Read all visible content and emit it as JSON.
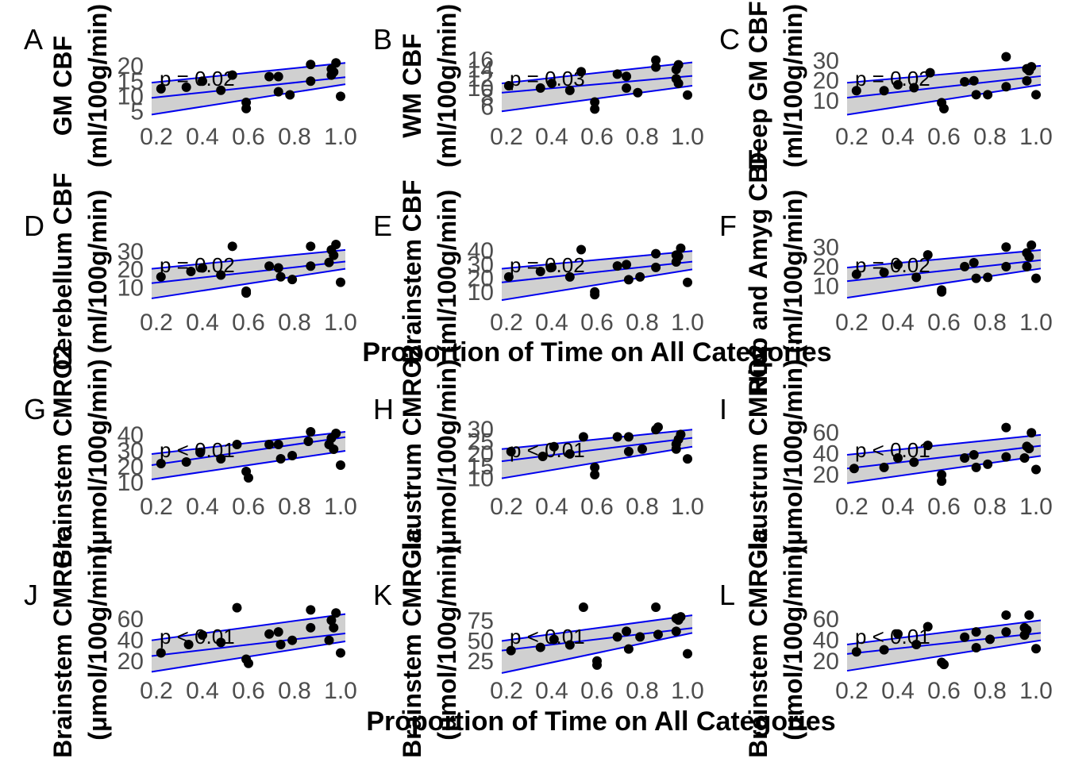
{
  "xaxis_title_top": "Proportion of Time on All Categories",
  "xaxis_title_bottom": "Proportion of Time on All Categories",
  "colors": {
    "line": "#0000ee",
    "band": "#c8c8c8",
    "point": "#000000",
    "tick": "#4d4d4d"
  },
  "chart_data": [
    {
      "letter": "A",
      "type": "scatter",
      "ylabel": "GM CBF",
      "yunit": "(ml/100g/min)",
      "pvalue": "p = 0.02",
      "xticks": [
        "0.2",
        "0.4",
        "0.6",
        "0.8",
        "1.0"
      ],
      "yticks": [
        "5",
        "10",
        "15",
        "20"
      ],
      "xlim": [
        0.2,
        1.0
      ],
      "ylim": [
        2,
        25
      ],
      "fit": {
        "intercept": 9.5,
        "slope": 8.5,
        "lower_start": 4,
        "lower_end": 14,
        "upper_start": 14.5,
        "upper_end": 21
      },
      "x": [
        0.22,
        0.33,
        0.4,
        0.48,
        0.53,
        0.59,
        0.59,
        0.69,
        0.73,
        0.73,
        0.78,
        0.87,
        0.87,
        0.96,
        0.96,
        0.97,
        0.98,
        1.0
      ],
      "y": [
        12.5,
        13,
        15,
        12,
        17,
        8,
        6,
        16.5,
        16.5,
        11.5,
        10.5,
        20.5,
        15,
        17,
        19,
        18,
        21,
        10
      ]
    },
    {
      "letter": "B",
      "type": "scatter",
      "ylabel": "WM CBF",
      "yunit": "(ml/100g/min)",
      "pvalue": "p = 0.03",
      "xticks": [
        "0.2",
        "0.4",
        "0.6",
        "0.8",
        "1.0"
      ],
      "yticks": [
        "6",
        "8",
        "10",
        "12",
        "14",
        "16"
      ],
      "xlim": [
        0.2,
        1.0
      ],
      "ylim": [
        3,
        18
      ],
      "fit": {
        "intercept": 9.0,
        "slope": 4.5,
        "lower_start": 5,
        "lower_end": 10.5,
        "upper_start": 11,
        "upper_end": 15.5
      },
      "x": [
        0.21,
        0.35,
        0.4,
        0.48,
        0.53,
        0.59,
        0.59,
        0.69,
        0.73,
        0.73,
        0.78,
        0.86,
        0.86,
        0.95,
        0.95,
        0.96,
        0.96,
        1.0
      ],
      "y": [
        10.5,
        10,
        11,
        9.5,
        13.5,
        7,
        5.5,
        13,
        12.5,
        10,
        9,
        14.5,
        16,
        12,
        14,
        11,
        15,
        8.5
      ]
    },
    {
      "letter": "C",
      "type": "scatter",
      "ylabel": "Deep GM CBF",
      "yunit": "(ml/100g/min)",
      "pvalue": "p = 0.02",
      "xticks": [
        "0.2",
        "0.4",
        "0.6",
        "0.8",
        "1.0"
      ],
      "yticks": [
        "10",
        "20",
        "30"
      ],
      "xlim": [
        0.2,
        1.0
      ],
      "ylim": [
        0,
        35
      ],
      "fit": {
        "intercept": 11.5,
        "slope": 13.5,
        "lower_start": 3,
        "lower_end": 18,
        "upper_start": 19,
        "upper_end": 27.5
      },
      "x": [
        0.22,
        0.34,
        0.4,
        0.47,
        0.54,
        0.59,
        0.6,
        0.69,
        0.73,
        0.74,
        0.79,
        0.87,
        0.87,
        0.96,
        0.96,
        0.97,
        0.98,
        1.0
      ],
      "y": [
        15,
        15,
        18,
        16.5,
        24,
        9,
        6,
        19.5,
        20,
        13,
        13,
        32,
        17,
        20,
        26,
        25,
        27,
        13
      ]
    },
    {
      "letter": "D",
      "type": "scatter",
      "ylabel": "Cerebellum CBF",
      "yunit": "(ml/100g/min)",
      "pvalue": "p = 0.02",
      "xticks": [
        "0.2",
        "0.4",
        "0.6",
        "0.8",
        "1.0"
      ],
      "yticks": [
        "10",
        "20",
        "30"
      ],
      "xlim": [
        0.2,
        1.0
      ],
      "ylim": [
        0,
        38
      ],
      "fit": {
        "intercept": 12.5,
        "slope": 15,
        "lower_start": 4,
        "lower_end": 20.5,
        "upper_start": 20.5,
        "upper_end": 31
      },
      "x": [
        0.22,
        0.35,
        0.4,
        0.48,
        0.53,
        0.59,
        0.59,
        0.69,
        0.73,
        0.74,
        0.79,
        0.87,
        0.87,
        0.95,
        0.96,
        0.97,
        0.98,
        1.0
      ],
      "y": [
        16,
        19,
        21,
        17,
        33,
        8,
        7,
        22,
        21,
        16,
        14.5,
        33,
        22,
        24,
        31,
        28,
        34,
        13
      ]
    },
    {
      "letter": "E",
      "type": "scatter",
      "ylabel": "Brainstem CBF",
      "yunit": "(ml/100g/min)",
      "pvalue": "p = 0.02",
      "xticks": [
        "0.2",
        "0.4",
        "0.6",
        "0.8",
        "1.0"
      ],
      "yticks": [
        "10",
        "20",
        "30",
        "40"
      ],
      "xlim": [
        0.2,
        1.0
      ],
      "ylim": [
        0,
        50
      ],
      "fit": {
        "intercept": 17,
        "slope": 19,
        "lower_start": 4,
        "lower_end": 26.5,
        "upper_start": 27,
        "upper_end": 40
      },
      "x": [
        0.21,
        0.35,
        0.4,
        0.48,
        0.53,
        0.59,
        0.59,
        0.69,
        0.73,
        0.74,
        0.79,
        0.86,
        0.86,
        0.95,
        0.95,
        0.96,
        0.97,
        1.0
      ],
      "y": [
        21,
        25,
        28,
        21,
        41,
        10,
        8,
        29,
        30,
        19,
        21,
        38,
        28,
        32,
        37,
        36,
        42,
        17
      ]
    },
    {
      "letter": "F",
      "type": "scatter",
      "ylabel": "Hipp and Amyg CBF",
      "yunit": "(ml/100g/min)",
      "pvalue": "p = 0.02",
      "xticks": [
        "0.2",
        "0.4",
        "0.6",
        "0.8",
        "1.0"
      ],
      "yticks": [
        "10",
        "20",
        "30"
      ],
      "xlim": [
        0.2,
        1.0
      ],
      "ylim": [
        0,
        35
      ],
      "fit": {
        "intercept": 12.5,
        "slope": 13.5,
        "lower_start": 4,
        "lower_end": 19,
        "upper_start": 19.5,
        "upper_end": 28.5
      },
      "x": [
        0.22,
        0.34,
        0.4,
        0.48,
        0.53,
        0.59,
        0.59,
        0.69,
        0.73,
        0.74,
        0.79,
        0.87,
        0.87,
        0.96,
        0.96,
        0.97,
        0.98,
        1.0
      ],
      "y": [
        16,
        17,
        21,
        14.5,
        26,
        8,
        7,
        20,
        22,
        14,
        14.5,
        30,
        20,
        20,
        27,
        25,
        31,
        14
      ]
    },
    {
      "letter": "G",
      "type": "scatter",
      "ylabel": "Brainstem CMRO2",
      "yunit": "(μmol/100g/min)",
      "pvalue": "p < 0.01",
      "xticks": [
        "0.2",
        "0.4",
        "0.6",
        "0.8",
        "1.0"
      ],
      "yticks": [
        "10",
        "20",
        "30",
        "40"
      ],
      "xlim": [
        0.2,
        1.0
      ],
      "ylim": [
        5,
        48
      ],
      "fit": {
        "intercept": 21,
        "slope": 22,
        "lower_start": 12,
        "lower_end": 30,
        "upper_start": 28,
        "upper_end": 42
      },
      "x": [
        0.22,
        0.33,
        0.39,
        0.48,
        0.55,
        0.59,
        0.6,
        0.69,
        0.73,
        0.74,
        0.79,
        0.86,
        0.87,
        0.95,
        0.96,
        0.97,
        0.98,
        1.0
      ],
      "y": [
        22,
        23,
        29,
        25,
        34,
        17,
        13,
        34,
        34,
        25,
        27,
        36,
        42,
        34,
        38,
        31,
        41,
        21
      ]
    },
    {
      "letter": "H",
      "type": "scatter",
      "ylabel": "Claustrum CMRO2",
      "yunit": "(μmol/100g/min)",
      "pvalue": "p < 0.01",
      "xticks": [
        "0.2",
        "0.4",
        "0.6",
        "0.8",
        "1.0"
      ],
      "yticks": [
        "10",
        "15",
        "20",
        "25",
        "30"
      ],
      "xlim": [
        0.2,
        1.0
      ],
      "ylim": [
        5,
        33
      ],
      "fit": {
        "intercept": 17,
        "slope": 12,
        "lower_start": 10,
        "lower_end": 23,
        "upper_start": 22,
        "upper_end": 30
      },
      "x": [
        0.22,
        0.36,
        0.41,
        0.48,
        0.54,
        0.59,
        0.59,
        0.69,
        0.74,
        0.74,
        0.8,
        0.86,
        0.87,
        0.95,
        0.95,
        0.96,
        0.97,
        1.0
      ],
      "y": [
        21,
        19,
        23,
        20,
        27,
        14.5,
        11.5,
        27,
        27,
        21,
        22,
        30,
        31,
        22,
        24,
        26,
        28,
        18
      ]
    },
    {
      "letter": "I",
      "type": "scatter",
      "ylabel": "Claustrum CMRO2",
      "yunit": "(μmol/100g/min)",
      "pvalue": "p < 0.01",
      "xticks": [
        "0.2",
        "0.4",
        "0.6",
        "0.8",
        "1.0"
      ],
      "yticks": [
        "20",
        "40",
        "60"
      ],
      "xlim": [
        0.2,
        1.0
      ],
      "ylim": [
        5,
        70
      ],
      "fit": {
        "intercept": 26,
        "slope": 27,
        "lower_start": 12,
        "lower_end": 38,
        "upper_start": 39,
        "upper_end": 58
      },
      "x": [
        0.21,
        0.34,
        0.4,
        0.47,
        0.53,
        0.59,
        0.59,
        0.69,
        0.73,
        0.74,
        0.79,
        0.87,
        0.87,
        0.95,
        0.96,
        0.97,
        0.98,
        1.0
      ],
      "y": [
        26,
        27,
        36,
        32,
        48,
        20,
        14,
        36,
        39,
        27,
        30,
        65,
        37,
        36,
        47,
        45,
        60,
        25
      ]
    },
    {
      "letter": "J",
      "type": "scatter",
      "ylabel": "Brainstem CMRGlc",
      "yunit": "(μmol/100g/min)",
      "pvalue": "p < 0.01",
      "xticks": [
        "0.2",
        "0.4",
        "0.6",
        "0.8",
        "1.0"
      ],
      "yticks": [
        "20",
        "40",
        "60"
      ],
      "xlim": [
        0.2,
        1.0
      ],
      "ylim": [
        5,
        70
      ],
      "fit": {
        "intercept": 25,
        "slope": 27,
        "lower_start": 10,
        "lower_end": 39,
        "upper_start": 40,
        "upper_end": 65
      },
      "x": [
        0.22,
        0.34,
        0.4,
        0.48,
        0.55,
        0.59,
        0.6,
        0.69,
        0.73,
        0.74,
        0.79,
        0.87,
        0.87,
        0.95,
        0.96,
        0.97,
        0.98,
        1.0
      ],
      "y": [
        28,
        36,
        45,
        38,
        71,
        22,
        18,
        46,
        48,
        36,
        40,
        69,
        52,
        40,
        59,
        52,
        66,
        28
      ]
    },
    {
      "letter": "K",
      "type": "scatter",
      "ylabel": "Brainstem CMRGlc",
      "yunit": "(μmol/100g/min)",
      "pvalue": "p < 0.01",
      "xticks": [
        "0.2",
        "0.4",
        "0.6",
        "0.8",
        "1.0"
      ],
      "yticks": [
        "25",
        "50",
        "75"
      ],
      "xlim": [
        0.2,
        1.0
      ],
      "ylim": [
        5,
        90
      ],
      "fit": {
        "intercept": 38,
        "slope": 35,
        "lower_start": 10,
        "lower_end": 60,
        "upper_start": 50,
        "upper_end": 82
      },
      "x": [
        0.22,
        0.35,
        0.41,
        0.48,
        0.54,
        0.6,
        0.6,
        0.69,
        0.73,
        0.74,
        0.79,
        0.86,
        0.87,
        0.95,
        0.95,
        0.96,
        0.97,
        1.0
      ],
      "y": [
        38,
        42,
        52,
        45,
        92,
        25,
        20,
        55,
        62,
        40,
        55,
        92,
        58,
        62,
        78,
        76,
        80,
        34
      ]
    },
    {
      "letter": "L",
      "type": "scatter",
      "ylabel": "Brainstem CMRGlc",
      "yunit": "(μmol/100g/min)",
      "pvalue": "p < 0.01",
      "xticks": [
        "0.2",
        "0.4",
        "0.6",
        "0.8",
        "1.0"
      ],
      "yticks": [
        "20",
        "40",
        "60"
      ],
      "xlim": [
        0.2,
        1.0
      ],
      "ylim": [
        5,
        70
      ],
      "fit": {
        "intercept": 27,
        "slope": 25,
        "lower_start": 11,
        "lower_end": 40,
        "upper_start": 36,
        "upper_end": 59
      },
      "x": [
        0.22,
        0.34,
        0.4,
        0.48,
        0.53,
        0.59,
        0.6,
        0.69,
        0.74,
        0.74,
        0.8,
        0.87,
        0.87,
        0.95,
        0.95,
        0.96,
        0.97,
        1.0
      ],
      "y": [
        29,
        31,
        46,
        36,
        53,
        19,
        17,
        43,
        48,
        33,
        41,
        64,
        48,
        45,
        52,
        50,
        64,
        32
      ]
    }
  ]
}
